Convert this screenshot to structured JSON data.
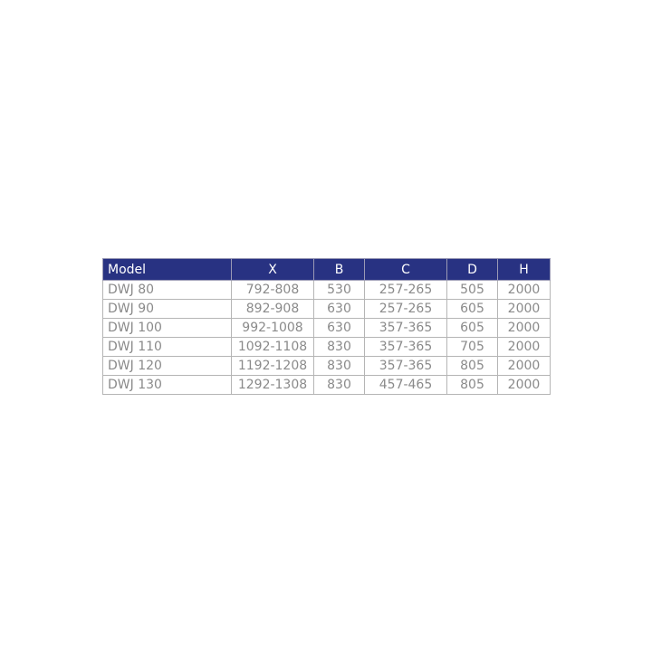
{
  "header_color": "#283282",
  "columns": [
    "Model",
    "X",
    "B",
    "C",
    "D",
    "H"
  ],
  "rows": [
    [
      "DWJ 80",
      "792-808",
      "530",
      "257-265",
      "505",
      "2000"
    ],
    [
      "DWJ 90",
      "892-908",
      "630",
      "257-265",
      "605",
      "2000"
    ],
    [
      "DWJ 100",
      "992-1008",
      "630",
      "357-365",
      "605",
      "2000"
    ],
    [
      "DWJ 110",
      "1092-1108",
      "830",
      "357-365",
      "705",
      "2000"
    ],
    [
      "DWJ 120",
      "1192-1208",
      "830",
      "357-365",
      "805",
      "2000"
    ],
    [
      "DWJ 130",
      "1292-1308",
      "830",
      "457-465",
      "805",
      "2000"
    ]
  ]
}
